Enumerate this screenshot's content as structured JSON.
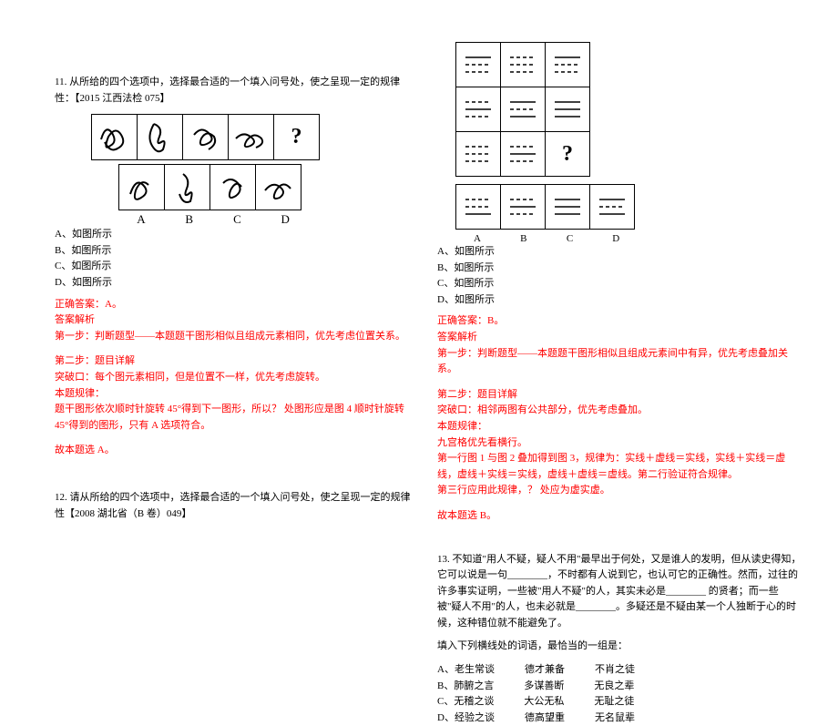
{
  "q11": {
    "text": "11. 从所给的四个选项中，选择最合适的一个填入问号处，使之呈现一定的规律性：【2015 江西法检 075】",
    "options": {
      "A": "A、如图所示",
      "B": "B、如图所示",
      "C": "C、如图所示",
      "D": "D、如图所示"
    },
    "opt_labels": [
      "A",
      "B",
      "C",
      "D"
    ],
    "qmark": "?",
    "answer": {
      "correct": "正确答案：A。",
      "header": "答案解析",
      "step1": "第一步：判断题型——本题题干图形相似且组成元素相同，优先考虑位置关系。",
      "step2": "第二步：题目详解",
      "breakthrough": "突破口：每个图元素相同，但是位置不一样，优先考虑旋转。",
      "rule_header": "本题规律：",
      "rule": "题干图形依次顺时针旋转 45°得到下一图形，所以？ 处图形应是图 4 顺时针旋转 45°得到的图形，只有 A 选项符合。",
      "conclusion": "故本题选 A。"
    }
  },
  "q12": {
    "text": "12. 请从所给的四个选项中，选择最合适的一个填入问号处，使之呈现一定的规律性【2008 湖北省（B 卷）049】",
    "options": {
      "A": "A、如图所示",
      "B": "B、如图所示",
      "C": "C、如图所示",
      "D": "D、如图所示"
    },
    "opt_labels": [
      "A",
      "B",
      "C",
      "D"
    ],
    "qmark": "?",
    "answer": {
      "correct": "正确答案：B。",
      "header": "答案解析",
      "step1": "第一步：判断题型——本题题干图形相似且组成元素间中有异，优先考虑叠加关系。",
      "step2": "第二步：题目详解",
      "breakthrough": "突破口：相邻两图有公共部分，优先考虑叠加。",
      "rule_header": "本题规律：",
      "rule1": "九宫格优先看横行。",
      "rule2": "第一行图 1 与图 2 叠加得到图 3，规律为：实线＋虚线＝实线，实线＋实线＝虚线，虚线＋实线＝实线，虚线＋虚线＝虚线。第二行验证符合规律。",
      "rule3": "第三行应用此规律，？ 处应为虚实虚。",
      "conclusion": "故本题选 B。"
    },
    "grid_patterns": {
      "r1c1": [
        "solid",
        "dashed",
        "dashed"
      ],
      "r1c2": [
        "dashed",
        "dashed",
        "dashed"
      ],
      "r1c3": [
        "solid",
        "dashed",
        "dashed"
      ],
      "r2c1": [
        "dashed",
        "solid",
        "dashed"
      ],
      "r2c2": [
        "solid",
        "dashed",
        "solid"
      ],
      "r2c3": [
        "solid",
        "solid",
        "solid"
      ],
      "r3c1": [
        "dashed",
        "dashed",
        "dashed"
      ],
      "r3c2": [
        "dashed",
        "solid",
        "dashed"
      ]
    },
    "opt_patterns": {
      "A": [
        "dashed",
        "dashed",
        "solid"
      ],
      "B": [
        "dashed",
        "solid",
        "dashed"
      ],
      "C": [
        "solid",
        "solid",
        "solid"
      ],
      "D": [
        "solid",
        "dashed",
        "solid"
      ]
    }
  },
  "q13": {
    "text": "13. 不知道\"用人不疑，疑人不用\"最早出于何处，又是谁人的发明，但从读史得知，它可以说是一句________，不时都有人说到它，也认可它的正确性。然而，过往的许多事实证明，一些被\"用人不疑\"的人，其实未必是________ 的贤者；而一些被\"疑人不用\"的人，也未必就是________。多疑还是不疑由某一个人独断于心的时候，这种错位就不能避免了。",
    "instruction": "填入下列横线处的词语，最恰当的一组是：",
    "options": {
      "A": {
        "label": "A、",
        "w1": "老生常谈",
        "w2": "德才兼备",
        "w3": "不肖之徒"
      },
      "B": {
        "label": "B、",
        "w1": "肺腑之言",
        "w2": "多谋善断",
        "w3": "无良之辈"
      },
      "C": {
        "label": "C、",
        "w1": "无稽之谈",
        "w2": "大公无私",
        "w3": "无耻之徒"
      },
      "D": {
        "label": "D、",
        "w1": "经验之谈",
        "w2": "德高望重",
        "w3": "无名鼠辈"
      }
    }
  },
  "colors": {
    "text": "#000000",
    "red": "#ff0000"
  }
}
